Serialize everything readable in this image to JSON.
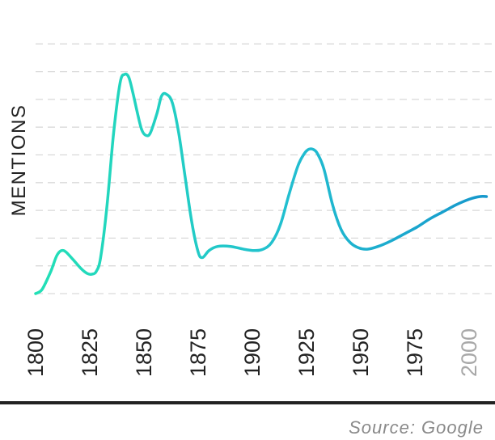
{
  "chart_data": {
    "type": "line",
    "title": "",
    "xlabel": "",
    "ylabel": "MENTIONS",
    "x_ticks": [
      "1800",
      "1825",
      "1850",
      "1875",
      "1900",
      "1925",
      "1950",
      "1975",
      "2000"
    ],
    "x_tick_colors": [
      "#222222",
      "#222222",
      "#222222",
      "#222222",
      "#222222",
      "#222222",
      "#222222",
      "#222222",
      "#a8a8a8"
    ],
    "xlim": [
      1800,
      2008
    ],
    "ylim": [
      0,
      9
    ],
    "grid": "horizontal-dashed",
    "legend": "none",
    "line_gradient": [
      "#22e0b6",
      "#22bfd0",
      "#1596cc"
    ],
    "series": [
      {
        "x": [
          1800,
          1803,
          1807,
          1810,
          1813,
          1817,
          1821,
          1824,
          1826,
          1828,
          1830,
          1833,
          1836,
          1839,
          1841,
          1843,
          1845,
          1847,
          1849,
          1851,
          1853,
          1856,
          1858,
          1860,
          1863,
          1866,
          1869,
          1872,
          1875,
          1877,
          1880,
          1884,
          1890,
          1896,
          1901,
          1905,
          1909,
          1913,
          1917,
          1921,
          1924,
          1926,
          1928,
          1930,
          1933,
          1937,
          1941,
          1945,
          1949,
          1953,
          1958,
          1964,
          1970,
          1976,
          1982,
          1988,
          1994,
          2000,
          2005,
          2008
        ],
        "y": [
          0.0,
          0.15,
          0.8,
          1.4,
          1.55,
          1.25,
          0.9,
          0.72,
          0.7,
          0.8,
          1.3,
          3.2,
          5.8,
          7.6,
          7.9,
          7.8,
          7.2,
          6.5,
          5.9,
          5.7,
          5.8,
          6.5,
          7.1,
          7.2,
          6.9,
          5.8,
          4.2,
          2.6,
          1.5,
          1.3,
          1.55,
          1.7,
          1.7,
          1.6,
          1.55,
          1.6,
          1.85,
          2.5,
          3.6,
          4.6,
          5.05,
          5.2,
          5.2,
          5.05,
          4.5,
          3.2,
          2.3,
          1.85,
          1.65,
          1.6,
          1.7,
          1.9,
          2.15,
          2.4,
          2.7,
          2.95,
          3.2,
          3.4,
          3.5,
          3.5
        ]
      }
    ]
  },
  "source": "Source: Google"
}
